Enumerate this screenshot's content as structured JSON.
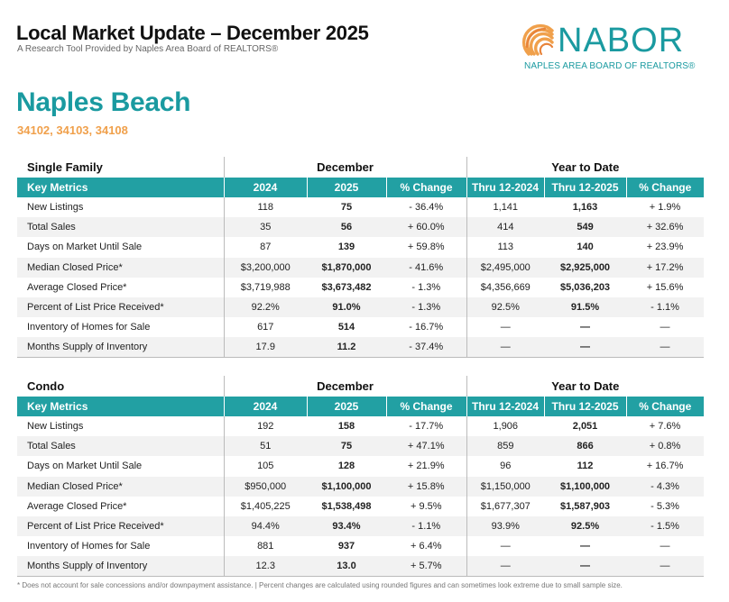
{
  "header": {
    "title": "Local Market Update – December 2025",
    "subtitle": "A Research Tool Provided by Naples Area Board of REALTORS®"
  },
  "logo": {
    "word": "NABOR",
    "tagline": "NAPLES AREA BOARD OF REALTORS®",
    "icon": "seashell-icon",
    "colors": {
      "teal": "#1a9aa0",
      "orange": "#f0a04b"
    }
  },
  "area": {
    "name": "Naples Beach",
    "zips": "34102, 34103, 34108"
  },
  "colors": {
    "header_bg": "#22a0a3",
    "stripe": "#f2f2f2",
    "zip": "#f0a04b"
  },
  "tables": [
    {
      "type": "Single Family",
      "group_month": "December",
      "group_ytd": "Year to Date",
      "columns": [
        "Key Metrics",
        "2024",
        "2025",
        "% Change",
        "Thru 12-2024",
        "Thru 12-2025",
        "% Change"
      ],
      "rows": [
        {
          "metric": "New Listings",
          "v2024": "118",
          "v2025": "75",
          "pct": "- 36.4%",
          "ytd2024": "1,141",
          "ytd2025": "1,163",
          "ytdpct": "+ 1.9%"
        },
        {
          "metric": "Total Sales",
          "v2024": "35",
          "v2025": "56",
          "pct": "+ 60.0%",
          "ytd2024": "414",
          "ytd2025": "549",
          "ytdpct": "+ 32.6%"
        },
        {
          "metric": "Days on Market Until Sale",
          "v2024": "87",
          "v2025": "139",
          "pct": "+ 59.8%",
          "ytd2024": "113",
          "ytd2025": "140",
          "ytdpct": "+ 23.9%"
        },
        {
          "metric": "Median Closed Price*",
          "v2024": "$3,200,000",
          "v2025": "$1,870,000",
          "pct": "- 41.6%",
          "ytd2024": "$2,495,000",
          "ytd2025": "$2,925,000",
          "ytdpct": "+ 17.2%"
        },
        {
          "metric": "Average Closed Price*",
          "v2024": "$3,719,988",
          "v2025": "$3,673,482",
          "pct": "- 1.3%",
          "ytd2024": "$4,356,669",
          "ytd2025": "$5,036,203",
          "ytdpct": "+ 15.6%"
        },
        {
          "metric": "Percent of List Price Received*",
          "v2024": "92.2%",
          "v2025": "91.0%",
          "pct": "- 1.3%",
          "ytd2024": "92.5%",
          "ytd2025": "91.5%",
          "ytdpct": "- 1.1%"
        },
        {
          "metric": "Inventory of Homes for Sale",
          "v2024": "617",
          "v2025": "514",
          "pct": "- 16.7%",
          "ytd2024": "—",
          "ytd2025": "—",
          "ytdpct": "—"
        },
        {
          "metric": "Months Supply of Inventory",
          "v2024": "17.9",
          "v2025": "11.2",
          "pct": "- 37.4%",
          "ytd2024": "—",
          "ytd2025": "—",
          "ytdpct": "—"
        }
      ]
    },
    {
      "type": "Condo",
      "group_month": "December",
      "group_ytd": "Year to Date",
      "columns": [
        "Key Metrics",
        "2024",
        "2025",
        "% Change",
        "Thru 12-2024",
        "Thru 12-2025",
        "% Change"
      ],
      "rows": [
        {
          "metric": "New Listings",
          "v2024": "192",
          "v2025": "158",
          "pct": "- 17.7%",
          "ytd2024": "1,906",
          "ytd2025": "2,051",
          "ytdpct": "+ 7.6%"
        },
        {
          "metric": "Total Sales",
          "v2024": "51",
          "v2025": "75",
          "pct": "+ 47.1%",
          "ytd2024": "859",
          "ytd2025": "866",
          "ytdpct": "+ 0.8%"
        },
        {
          "metric": "Days on Market Until Sale",
          "v2024": "105",
          "v2025": "128",
          "pct": "+ 21.9%",
          "ytd2024": "96",
          "ytd2025": "112",
          "ytdpct": "+ 16.7%"
        },
        {
          "metric": "Median Closed Price*",
          "v2024": "$950,000",
          "v2025": "$1,100,000",
          "pct": "+ 15.8%",
          "ytd2024": "$1,150,000",
          "ytd2025": "$1,100,000",
          "ytdpct": "- 4.3%"
        },
        {
          "metric": "Average Closed Price*",
          "v2024": "$1,405,225",
          "v2025": "$1,538,498",
          "pct": "+ 9.5%",
          "ytd2024": "$1,677,307",
          "ytd2025": "$1,587,903",
          "ytdpct": "- 5.3%"
        },
        {
          "metric": "Percent of List Price Received*",
          "v2024": "94.4%",
          "v2025": "93.4%",
          "pct": "- 1.1%",
          "ytd2024": "93.9%",
          "ytd2025": "92.5%",
          "ytdpct": "- 1.5%"
        },
        {
          "metric": "Inventory of Homes for Sale",
          "v2024": "881",
          "v2025": "937",
          "pct": "+ 6.4%",
          "ytd2024": "—",
          "ytd2025": "—",
          "ytdpct": "—"
        },
        {
          "metric": "Months Supply of Inventory",
          "v2024": "12.3",
          "v2025": "13.0",
          "pct": "+ 5.7%",
          "ytd2024": "—",
          "ytd2025": "—",
          "ytdpct": "—"
        }
      ]
    }
  ],
  "footnote": "* Does not account for sale concessions and/or downpayment assistance. | Percent changes are calculated using rounded figures and can sometimes look extreme due to small sample size."
}
